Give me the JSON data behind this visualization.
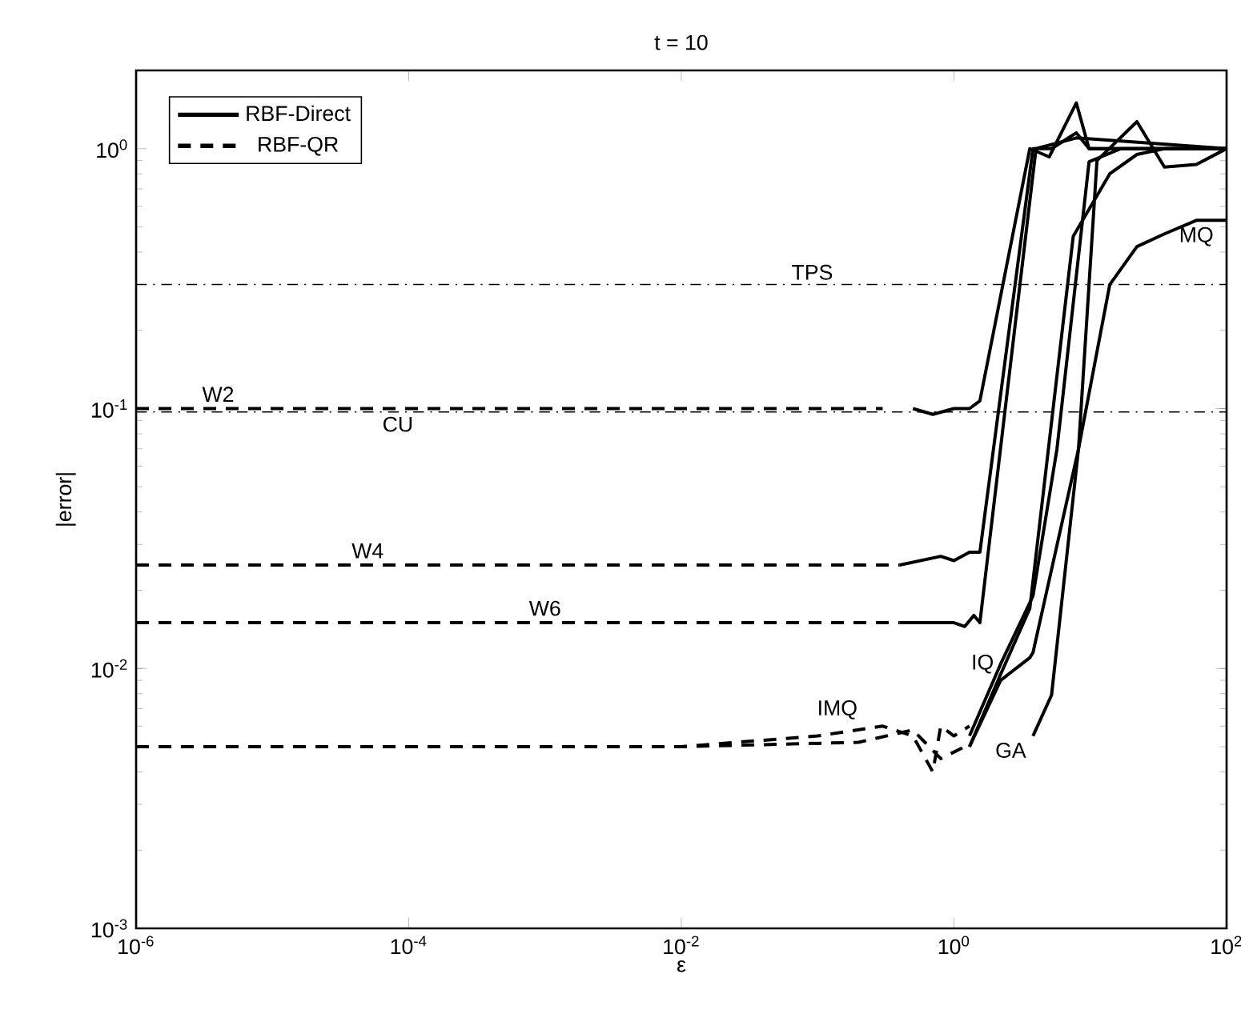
{
  "chart_data": {
    "type": "line",
    "title": "t = 10",
    "xlabel": "ε",
    "ylabel": "|error|",
    "log": "xy",
    "legend": "top left",
    "xlim": [
      1e-06,
      100
    ],
    "ylim": [
      0.001,
      2
    ],
    "xticks": [
      {
        "value": 1e-06,
        "label": "10$^{-6}$"
      },
      {
        "value": 0.0001,
        "label": "10$^{-4}$"
      },
      {
        "value": 0.01,
        "label": "10$^{-2}$"
      },
      {
        "value": 1,
        "label": "10$^{0}$"
      },
      {
        "value": 100,
        "label": "10$^{2}$"
      }
    ],
    "yticks": [
      {
        "value": 0.001,
        "label": "10$^{-3}$"
      },
      {
        "value": 0.01,
        "label": "10$^{-2}$"
      },
      {
        "value": 0.1,
        "label": "10$^{-1}$"
      },
      {
        "value": 1,
        "label": "10$^{0}$"
      }
    ],
    "series": [
      {
        "name": "RBF-Direct",
        "color": "#000000",
        "line_style": "solid",
        "x": [
          0.5,
          0.7,
          1.0,
          1.3,
          1.55,
          3.6,
          5.0,
          7.9,
          9.8,
          13.9,
          100
        ],
        "values": [
          0.1,
          0.095,
          0.1,
          0.1,
          0.107,
          1.0,
          0.93,
          1.5,
          1.0,
          1.0,
          1.0
        ]
      },
      {
        "name": "RBF-QR",
        "color": "#000000",
        "line_style": "dashed",
        "x": [
          1e-06,
          0.3
        ],
        "values": [
          0.1,
          0.1
        ]
      },
      {
        "color": "#000000",
        "line_style": "dashed",
        "x": [
          1e-06,
          0.4
        ],
        "values": [
          0.025,
          0.025
        ]
      },
      {
        "color": "#000000",
        "line_style": "dashed",
        "x": [
          1e-06,
          0.4
        ],
        "values": [
          0.015,
          0.015
        ]
      },
      {
        "color": "#000000",
        "line_style": "dashed",
        "x": [
          1e-06,
          0.01,
          0.1,
          0.3,
          0.5,
          0.7,
          0.8,
          1.0,
          1.3
        ],
        "values": [
          0.005,
          0.005,
          0.0055,
          0.006,
          0.0055,
          0.004,
          0.006,
          0.0055,
          0.006
        ]
      },
      {
        "color": "#000000",
        "line_style": "dashed",
        "x": [
          1e-06,
          0.01,
          0.2,
          0.5,
          0.8,
          1.2
        ],
        "values": [
          0.005,
          0.005,
          0.0052,
          0.0058,
          0.0045,
          0.005
        ]
      },
      {
        "color": "#000000",
        "line_style": "solid",
        "x": [
          0.4,
          0.8,
          1.0,
          1.3,
          1.55,
          3.8,
          5.2,
          7.9,
          9.8,
          100
        ],
        "values": [
          0.025,
          0.027,
          0.026,
          0.028,
          0.028,
          1.0,
          1.0,
          1.15,
          1.0,
          1.0
        ]
      },
      {
        "color": "#000000",
        "line_style": "solid",
        "x": [
          0.4,
          1.0,
          1.2,
          1.4,
          1.55,
          4.0,
          7.9,
          100
        ],
        "values": [
          0.015,
          0.015,
          0.0145,
          0.016,
          0.015,
          1.0,
          1.1,
          1.0
        ]
      },
      {
        "color": "#000000",
        "line_style": "solid",
        "x": [
          1.3,
          2.2,
          3.8,
          5.7,
          9.8,
          16.8,
          100
        ],
        "values": [
          0.0055,
          0.0104,
          0.019,
          0.07,
          0.89,
          1.0,
          1.0
        ]
      },
      {
        "color": "#000000",
        "line_style": "solid",
        "x": [
          1.3,
          2.2,
          3.6,
          3.8,
          8.2,
          11.2,
          22,
          35,
          60,
          100
        ],
        "values": [
          0.005,
          0.009,
          0.011,
          0.0115,
          0.07,
          0.9,
          1.27,
          0.85,
          0.87,
          1.0
        ]
      },
      {
        "color": "#000000",
        "line_style": "solid",
        "x": [
          1.3,
          2.2,
          3.6,
          7.5,
          13.9,
          22,
          35,
          100
        ],
        "values": [
          0.005,
          0.0095,
          0.017,
          0.46,
          0.8,
          0.95,
          1.0,
          1.0
        ]
      },
      {
        "color": "#000000",
        "line_style": "solid",
        "x": [
          3.8,
          5.2,
          8.2,
          13.9,
          22,
          35,
          60,
          100
        ],
        "values": [
          0.0055,
          0.0079,
          0.07,
          0.3,
          0.42,
          0.47,
          0.53,
          0.53
        ]
      }
    ],
    "ref_lines": [
      {
        "axis": "y",
        "value": 0.3,
        "label": "TPS",
        "line_style": "dashdot",
        "color": "#000000"
      },
      {
        "axis": "y",
        "value": 0.097,
        "label": "CU",
        "line_style": "dashdot",
        "color": "#000000"
      }
    ],
    "annotations": [
      {
        "text": "W2",
        "x": 4e-06,
        "y": 0.1
      },
      {
        "text": "W4",
        "x": 5e-05,
        "y": 0.025
      },
      {
        "text": "W6",
        "x": 0.001,
        "y": 0.015
      },
      {
        "text": "IMQ",
        "x": 0.22,
        "y": 0.006
      },
      {
        "text": "IQ",
        "x": 2.2,
        "y": 0.0104
      },
      {
        "text": "GA",
        "x": 3.8,
        "y": 0.0055
      },
      {
        "text": "MQ",
        "x": 60,
        "y": 0.53
      }
    ]
  }
}
